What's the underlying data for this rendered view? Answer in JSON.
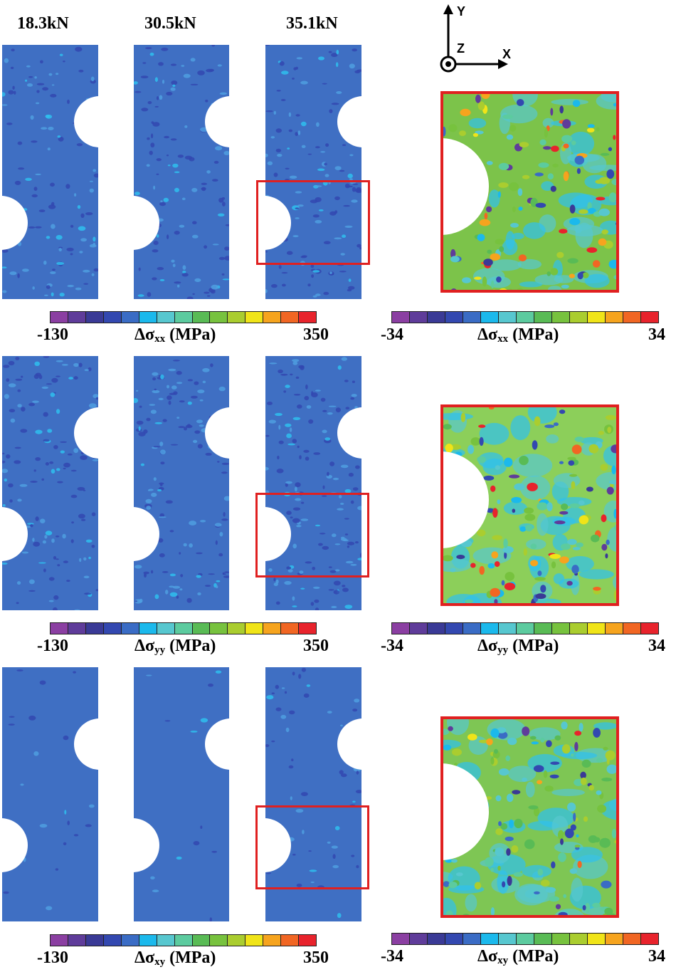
{
  "load_labels": [
    "18.3kN",
    "30.5kN",
    "35.1kN"
  ],
  "axes": {
    "y": "Y",
    "z": "Z",
    "x": "X"
  },
  "colormap": [
    "#8b3fa2",
    "#5f3c9a",
    "#3a3a96",
    "#3348b0",
    "#3a6cc5",
    "#1bb9ec",
    "#57c7cf",
    "#5ccb9f",
    "#59bb55",
    "#77c23e",
    "#aacd2f",
    "#f0e418",
    "#f6a41e",
    "#f16623",
    "#e8232c"
  ],
  "rows": [
    {
      "component": "xx",
      "left_colorbar": {
        "min": "-130",
        "max": "350",
        "symbol": "Δσ",
        "subscript": "xx",
        "unit": "(MPa)"
      },
      "right_colorbar": {
        "min": "-34",
        "max": "34",
        "symbol": "Δσ",
        "subscript": "xx",
        "unit": "(MPa)"
      }
    },
    {
      "component": "yy",
      "left_colorbar": {
        "min": "-130",
        "max": "350",
        "symbol": "Δσ",
        "subscript": "yy",
        "unit": "(MPa)"
      },
      "right_colorbar": {
        "min": "-34",
        "max": "34",
        "symbol": "Δσ",
        "subscript": "yy",
        "unit": "(MPa)"
      }
    },
    {
      "component": "xy",
      "left_colorbar": {
        "min": "-130",
        "max": "350",
        "symbol": "Δσ",
        "subscript": "xy",
        "unit": "(MPa)"
      },
      "right_colorbar": {
        "min": "-34",
        "max": "34",
        "symbol": "Δσ",
        "subscript": "xy",
        "unit": "(MPa)"
      }
    }
  ]
}
